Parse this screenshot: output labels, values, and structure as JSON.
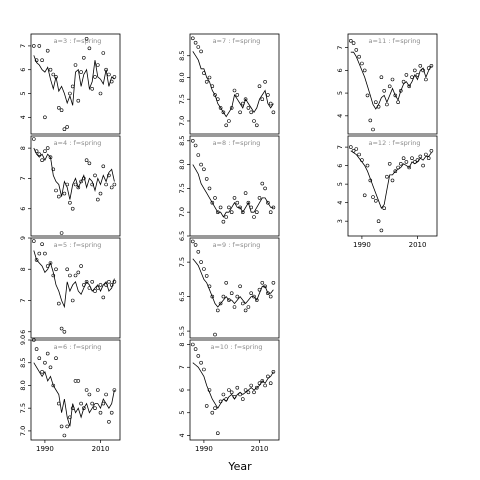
{
  "figure": {
    "xlabel": "Year"
  },
  "chart_data": [
    {
      "type": "scatter",
      "title": "a=3 : f=spring",
      "ylim": [
        3.3,
        7.5
      ],
      "yticks": [
        4,
        5,
        6,
        7
      ],
      "xlim": [
        1985,
        2017
      ],
      "x": [
        1986,
        1987,
        1988,
        1989,
        1990,
        1991,
        1992,
        1993,
        1994,
        1995,
        1996,
        1997,
        1998,
        1999,
        2000,
        2001,
        2002,
        2003,
        2004,
        2005,
        2006,
        2007,
        2008,
        2009,
        2010,
        2011,
        2012,
        2013,
        2014,
        2015
      ],
      "points": [
        7.0,
        6.4,
        7.0,
        6.4,
        4.0,
        6.8,
        6.0,
        5.8,
        5.7,
        4.4,
        4.3,
        3.5,
        3.6,
        5.0,
        5.3,
        6.2,
        4.7,
        5.9,
        6.5,
        7.3,
        6.9,
        5.2,
        5.7,
        6.2,
        5.0,
        6.7,
        6.0,
        5.8,
        5.5,
        5.7
      ],
      "line": [
        6.6,
        6.3,
        6.2,
        6.0,
        5.9,
        6.1,
        5.6,
        5.2,
        5.7,
        5.1,
        5.3,
        5.0,
        4.6,
        4.9,
        4.5,
        5.9,
        6.0,
        5.3,
        5.8,
        6.0,
        5.2,
        5.5,
        6.4,
        5.7,
        5.6,
        5.4,
        6.0,
        5.3,
        5.7,
        5.6
      ]
    },
    {
      "type": "scatter",
      "title": "a=4 : f=spring",
      "ylim": [
        5.1,
        8.4
      ],
      "yticks": [
        6.0,
        7.0,
        8.0
      ],
      "xlim": [
        1985,
        2017
      ],
      "x": [
        1986,
        1987,
        1988,
        1989,
        1990,
        1991,
        1992,
        1993,
        1994,
        1995,
        1996,
        1997,
        1998,
        1999,
        2000,
        2001,
        2002,
        2003,
        2004,
        2005,
        2006,
        2007,
        2008,
        2009,
        2010,
        2011,
        2012,
        2013,
        2014,
        2015
      ],
      "points": [
        8.3,
        7.9,
        7.8,
        7.6,
        7.9,
        8.0,
        7.7,
        7.3,
        6.6,
        6.4,
        5.2,
        6.5,
        6.8,
        6.2,
        6.0,
        6.8,
        6.7,
        6.9,
        7.0,
        7.6,
        7.5,
        6.8,
        7.1,
        6.3,
        6.5,
        7.4,
        6.8,
        7.1,
        6.7,
        6.8
      ],
      "line": [
        8.0,
        7.8,
        7.7,
        7.8,
        7.6,
        7.8,
        7.7,
        7.1,
        6.9,
        6.8,
        6.4,
        6.9,
        6.7,
        6.3,
        6.8,
        7.0,
        6.7,
        6.9,
        7.1,
        6.7,
        7.0,
        6.9,
        6.6,
        7.0,
        6.8,
        7.1,
        6.9,
        7.2,
        7.3,
        6.9
      ]
    },
    {
      "type": "scatter",
      "title": "a=5 : f=spring",
      "ylim": [
        5.8,
        9.0
      ],
      "yticks": [
        6.0,
        7.0,
        8.0,
        9.0
      ],
      "xlim": [
        1985,
        2017
      ],
      "x": [
        1986,
        1987,
        1988,
        1989,
        1990,
        1991,
        1992,
        1993,
        1994,
        1995,
        1996,
        1997,
        1998,
        1999,
        2000,
        2001,
        2002,
        2003,
        2004,
        2005,
        2006,
        2007,
        2008,
        2009,
        2010,
        2011,
        2012,
        2013,
        2014,
        2015
      ],
      "points": [
        8.9,
        8.3,
        8.5,
        8.8,
        8.5,
        8.1,
        8.2,
        7.8,
        8.0,
        6.9,
        6.1,
        6.0,
        8.0,
        7.8,
        7.0,
        7.8,
        7.9,
        8.1,
        7.5,
        7.6,
        7.4,
        7.6,
        7.3,
        7.4,
        7.5,
        7.1,
        7.5,
        7.6,
        7.5,
        7.6
      ],
      "line": [
        8.6,
        8.3,
        8.2,
        8.1,
        7.9,
        8.0,
        8.2,
        7.9,
        7.5,
        7.3,
        7.0,
        6.8,
        7.6,
        7.3,
        7.5,
        7.6,
        7.3,
        7.2,
        7.4,
        7.6,
        7.5,
        7.3,
        7.4,
        7.5,
        7.3,
        7.5,
        7.6,
        7.3,
        7.4,
        7.7
      ]
    },
    {
      "type": "scatter",
      "title": "a=6 : f=spring",
      "ylim": [
        6.8,
        9.0
      ],
      "yticks": [
        7.0,
        7.5,
        8.0,
        8.5,
        9.0
      ],
      "xlim": [
        1985,
        2017
      ],
      "x": [
        1986,
        1987,
        1988,
        1989,
        1990,
        1991,
        1992,
        1993,
        1994,
        1995,
        1996,
        1997,
        1998,
        1999,
        2000,
        2001,
        2002,
        2003,
        2004,
        2005,
        2006,
        2007,
        2008,
        2009,
        2010,
        2011,
        2012,
        2013,
        2014,
        2015
      ],
      "points": [
        9.0,
        8.8,
        8.6,
        8.3,
        8.5,
        8.7,
        8.4,
        8.0,
        8.6,
        7.6,
        7.1,
        6.9,
        7.1,
        7.3,
        7.5,
        8.1,
        8.1,
        7.6,
        7.5,
        7.9,
        7.8,
        7.6,
        7.5,
        7.9,
        7.4,
        7.6,
        7.8,
        7.2,
        7.4,
        7.9
      ],
      "line": [
        8.5,
        8.4,
        8.3,
        8.2,
        8.3,
        8.1,
        8.2,
        8.0,
        7.9,
        7.8,
        7.4,
        7.7,
        7.3,
        7.1,
        7.6,
        7.4,
        7.5,
        7.3,
        7.5,
        7.6,
        7.4,
        7.5,
        7.6,
        7.6,
        7.5,
        7.7,
        7.6,
        7.5,
        7.6,
        7.9
      ]
    },
    {
      "type": "scatter",
      "title": "a=7 : f=spring",
      "ylim": [
        6.7,
        9.0
      ],
      "yticks": [
        7.0,
        7.5,
        8.0,
        8.5
      ],
      "xlim": [
        1985,
        2017
      ],
      "x": [
        1986,
        1987,
        1988,
        1989,
        1990,
        1991,
        1992,
        1993,
        1994,
        1995,
        1996,
        1997,
        1998,
        1999,
        2000,
        2001,
        2002,
        2003,
        2004,
        2005,
        2006,
        2007,
        2008,
        2009,
        2010,
        2011,
        2012,
        2013,
        2014,
        2015
      ],
      "points": [
        8.9,
        8.8,
        8.7,
        8.6,
        8.1,
        7.9,
        8.0,
        7.8,
        7.6,
        7.5,
        7.3,
        7.2,
        6.9,
        7.0,
        7.3,
        7.7,
        7.6,
        7.2,
        7.4,
        7.5,
        7.3,
        7.2,
        7.0,
        6.9,
        7.8,
        7.5,
        7.9,
        7.6,
        7.4,
        7.2
      ],
      "line": [
        8.6,
        8.5,
        8.4,
        8.2,
        8.2,
        8.0,
        7.9,
        7.7,
        7.6,
        7.4,
        7.3,
        7.2,
        7.1,
        7.2,
        7.3,
        7.6,
        7.5,
        7.4,
        7.3,
        7.5,
        7.4,
        7.3,
        7.2,
        7.3,
        7.5,
        7.6,
        7.7,
        7.4,
        7.3,
        7.4
      ]
    },
    {
      "type": "scatter",
      "title": "a=8 : f=spring",
      "ylim": [
        6.5,
        8.6
      ],
      "yticks": [
        6.5,
        7.0,
        7.5,
        8.0,
        8.5
      ],
      "xlim": [
        1985,
        2017
      ],
      "x": [
        1986,
        1987,
        1988,
        1989,
        1990,
        1991,
        1992,
        1993,
        1994,
        1995,
        1996,
        1997,
        1998,
        1999,
        2000,
        2001,
        2002,
        2003,
        2004,
        2005,
        2006,
        2007,
        2008,
        2009,
        2010,
        2011,
        2012,
        2013,
        2014,
        2015
      ],
      "points": [
        8.5,
        8.4,
        8.2,
        8.0,
        7.9,
        7.7,
        7.5,
        7.2,
        7.3,
        7.0,
        7.1,
        6.8,
        6.9,
        7.1,
        7.0,
        7.3,
        7.2,
        7.1,
        7.0,
        7.4,
        7.2,
        7.1,
        6.9,
        7.0,
        7.3,
        7.6,
        7.5,
        7.2,
        7.0,
        7.1
      ],
      "line": [
        8.0,
        7.9,
        7.8,
        7.6,
        7.5,
        7.4,
        7.3,
        7.2,
        7.1,
        7.0,
        7.0,
        6.9,
        7.0,
        7.0,
        7.1,
        7.2,
        7.1,
        7.1,
        7.0,
        7.1,
        7.2,
        7.0,
        7.0,
        7.1,
        7.2,
        7.3,
        7.3,
        7.2,
        7.1,
        7.1
      ]
    },
    {
      "type": "scatter",
      "title": "a=9 : f=spring",
      "ylim": [
        5.3,
        8.2
      ],
      "yticks": [
        5.5,
        6.5,
        7.5
      ],
      "xlim": [
        1985,
        2017
      ],
      "x": [
        1986,
        1987,
        1988,
        1989,
        1990,
        1991,
        1992,
        1993,
        1994,
        1995,
        1996,
        1997,
        1998,
        1999,
        2000,
        2001,
        2002,
        2003,
        2004,
        2005,
        2006,
        2007,
        2008,
        2009,
        2010,
        2011,
        2012,
        2013,
        2014,
        2015
      ],
      "points": [
        8.1,
        8.0,
        7.8,
        7.5,
        7.3,
        7.1,
        6.8,
        6.5,
        5.4,
        6.1,
        6.3,
        6.5,
        6.9,
        6.4,
        6.6,
        6.2,
        6.5,
        6.8,
        6.3,
        6.1,
        6.2,
        6.6,
        6.5,
        6.4,
        6.7,
        6.9,
        6.8,
        6.6,
        6.5,
        6.9
      ],
      "line": [
        7.6,
        7.5,
        7.4,
        7.2,
        7.0,
        6.9,
        6.7,
        6.5,
        6.3,
        6.2,
        6.3,
        6.4,
        6.5,
        6.4,
        6.4,
        6.3,
        6.4,
        6.5,
        6.4,
        6.3,
        6.4,
        6.5,
        6.5,
        6.4,
        6.6,
        6.8,
        6.8,
        6.6,
        6.6,
        6.7
      ]
    },
    {
      "type": "scatter",
      "title": "a=10 : f=spring",
      "ylim": [
        3.8,
        8.2
      ],
      "yticks": [
        4,
        5,
        6,
        7,
        8
      ],
      "xlim": [
        1985,
        2017
      ],
      "x": [
        1986,
        1987,
        1988,
        1989,
        1990,
        1991,
        1992,
        1993,
        1994,
        1995,
        1996,
        1997,
        1998,
        1999,
        2000,
        2001,
        2002,
        2003,
        2004,
        2005,
        2006,
        2007,
        2008,
        2009,
        2010,
        2011,
        2012,
        2013,
        2014,
        2015
      ],
      "points": [
        8.0,
        7.8,
        7.5,
        7.2,
        6.9,
        5.3,
        6.0,
        5.0,
        5.2,
        4.1,
        5.5,
        5.8,
        5.6,
        6.0,
        5.9,
        5.7,
        6.1,
        5.8,
        5.6,
        6.0,
        5.9,
        6.2,
        5.9,
        6.1,
        6.3,
        6.4,
        6.2,
        6.6,
        6.3,
        6.8
      ],
      "line": [
        7.2,
        7.1,
        7.0,
        6.8,
        6.6,
        6.2,
        5.9,
        5.6,
        5.4,
        5.2,
        5.4,
        5.6,
        5.5,
        5.7,
        5.8,
        5.6,
        5.8,
        5.9,
        5.8,
        5.9,
        6.0,
        6.1,
        6.0,
        6.1,
        6.2,
        6.4,
        6.3,
        6.5,
        6.6,
        6.8
      ]
    },
    {
      "type": "scatter",
      "title": "a=11 : f=spring",
      "ylim": [
        3.2,
        7.6
      ],
      "yticks": [
        4,
        5,
        6,
        7
      ],
      "xlim": [
        1985,
        2017
      ],
      "x": [
        1986,
        1987,
        1988,
        1989,
        1990,
        1991,
        1992,
        1993,
        1994,
        1995,
        1996,
        1997,
        1998,
        1999,
        2000,
        2001,
        2002,
        2003,
        2004,
        2005,
        2006,
        2007,
        2008,
        2009,
        2010,
        2011,
        2012,
        2013,
        2014,
        2015
      ],
      "points": [
        7.3,
        7.2,
        6.9,
        6.6,
        6.3,
        6.0,
        4.9,
        3.8,
        3.4,
        4.6,
        4.4,
        5.7,
        5.1,
        4.5,
        5.3,
        5.6,
        4.9,
        4.6,
        5.1,
        5.5,
        5.8,
        5.3,
        5.7,
        6.0,
        5.8,
        6.2,
        6.0,
        5.6,
        6.1,
        6.2
      ],
      "line": [
        6.8,
        6.8,
        6.6,
        6.3,
        6.0,
        5.7,
        5.3,
        4.9,
        4.5,
        4.3,
        4.5,
        4.8,
        4.9,
        4.6,
        4.9,
        5.2,
        4.9,
        4.7,
        5.1,
        5.4,
        5.5,
        5.3,
        5.5,
        5.8,
        5.6,
        6.0,
        6.1,
        5.7,
        6.0,
        6.2
      ]
    },
    {
      "type": "scatter",
      "title": "a=12 : f=spring",
      "ylim": [
        2.2,
        7.6
      ],
      "yticks": [
        3,
        4,
        5,
        6,
        7
      ],
      "xlim": [
        1985,
        2017
      ],
      "x": [
        1986,
        1987,
        1988,
        1989,
        1990,
        1991,
        1992,
        1993,
        1994,
        1995,
        1996,
        1997,
        1998,
        1999,
        2000,
        2001,
        2002,
        2003,
        2004,
        2005,
        2006,
        2007,
        2008,
        2009,
        2010,
        2011,
        2012,
        2013,
        2014,
        2015
      ],
      "points": [
        7.0,
        6.8,
        6.9,
        6.6,
        6.3,
        4.4,
        6.0,
        5.2,
        4.3,
        4.1,
        3.0,
        2.5,
        3.7,
        5.4,
        6.1,
        5.2,
        5.7,
        5.9,
        6.1,
        6.4,
        6.2,
        5.9,
        6.4,
        6.2,
        6.3,
        6.5,
        6.0,
        6.6,
        6.4,
        6.8
      ],
      "line": [
        6.8,
        6.7,
        6.6,
        6.4,
        6.2,
        6.0,
        5.7,
        5.3,
        4.9,
        4.5,
        4.1,
        3.7,
        3.9,
        4.7,
        5.5,
        5.5,
        5.7,
        5.8,
        5.9,
        6.1,
        6.0,
        5.9,
        6.2,
        6.1,
        6.2,
        6.4,
        6.3,
        6.5,
        6.5,
        6.7
      ]
    }
  ],
  "xaxis": {
    "ticks": [
      1990,
      2010
    ],
    "tick_labels": [
      "1990",
      "2010"
    ]
  },
  "colors": {
    "title": "#8c8c8c",
    "axis": "#000000",
    "frame": "#000000",
    "points": "#000000",
    "line": "#000000"
  }
}
